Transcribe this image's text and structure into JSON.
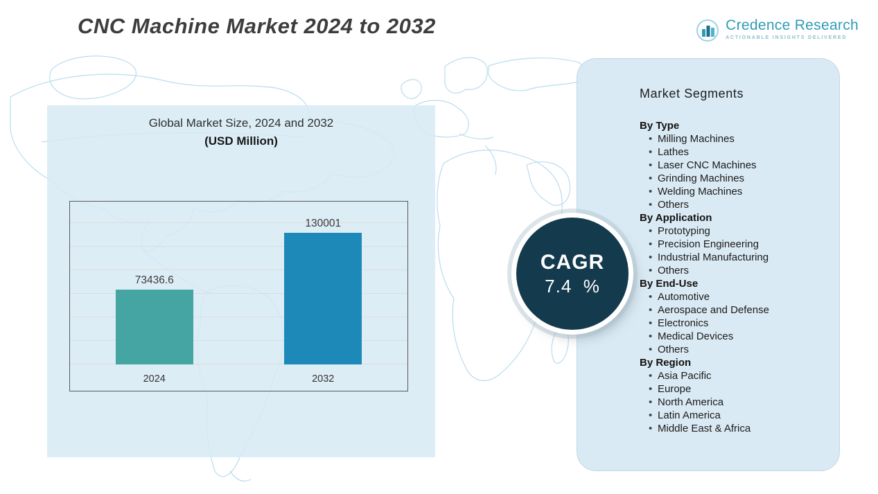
{
  "title": "CNC Machine Market 2024 to 2032",
  "logo": {
    "name": "Credence Research",
    "tagline": "Actionable Insights Delivered"
  },
  "chart_data": {
    "type": "bar",
    "title": "Global Market Size, 2024 and 2032",
    "subtitle": "(USD Million)",
    "categories": [
      "2024",
      "2032"
    ],
    "values": [
      73436.6,
      130001
    ],
    "value_labels": [
      "73436.6",
      "130001"
    ],
    "bar_colors": [
      "#45a5a3",
      "#1c89b8"
    ],
    "ylim": [
      0,
      140000
    ],
    "grid": true,
    "legend": "none"
  },
  "cagr": {
    "label": "CAGR",
    "value": "7.4  %"
  },
  "segments": {
    "title": "Market Segments",
    "groups": [
      {
        "label": "By Type",
        "items": [
          "Milling Machines",
          "Lathes",
          "Laser CNC Machines",
          "Grinding Machines",
          "Welding Machines",
          "Others"
        ]
      },
      {
        "label": "By Application",
        "items": [
          "Prototyping",
          "Precision Engineering",
          "Industrial Manufacturing",
          "Others"
        ]
      },
      {
        "label": "By End-Use",
        "items": [
          "Automotive",
          "Aerospace and Defense",
          "Electronics",
          "Medical Devices",
          "Others"
        ]
      },
      {
        "label": "By Region",
        "items": [
          "Asia Pacific",
          "Europe",
          "North America",
          "Latin America",
          "Middle East & Africa"
        ]
      }
    ]
  }
}
